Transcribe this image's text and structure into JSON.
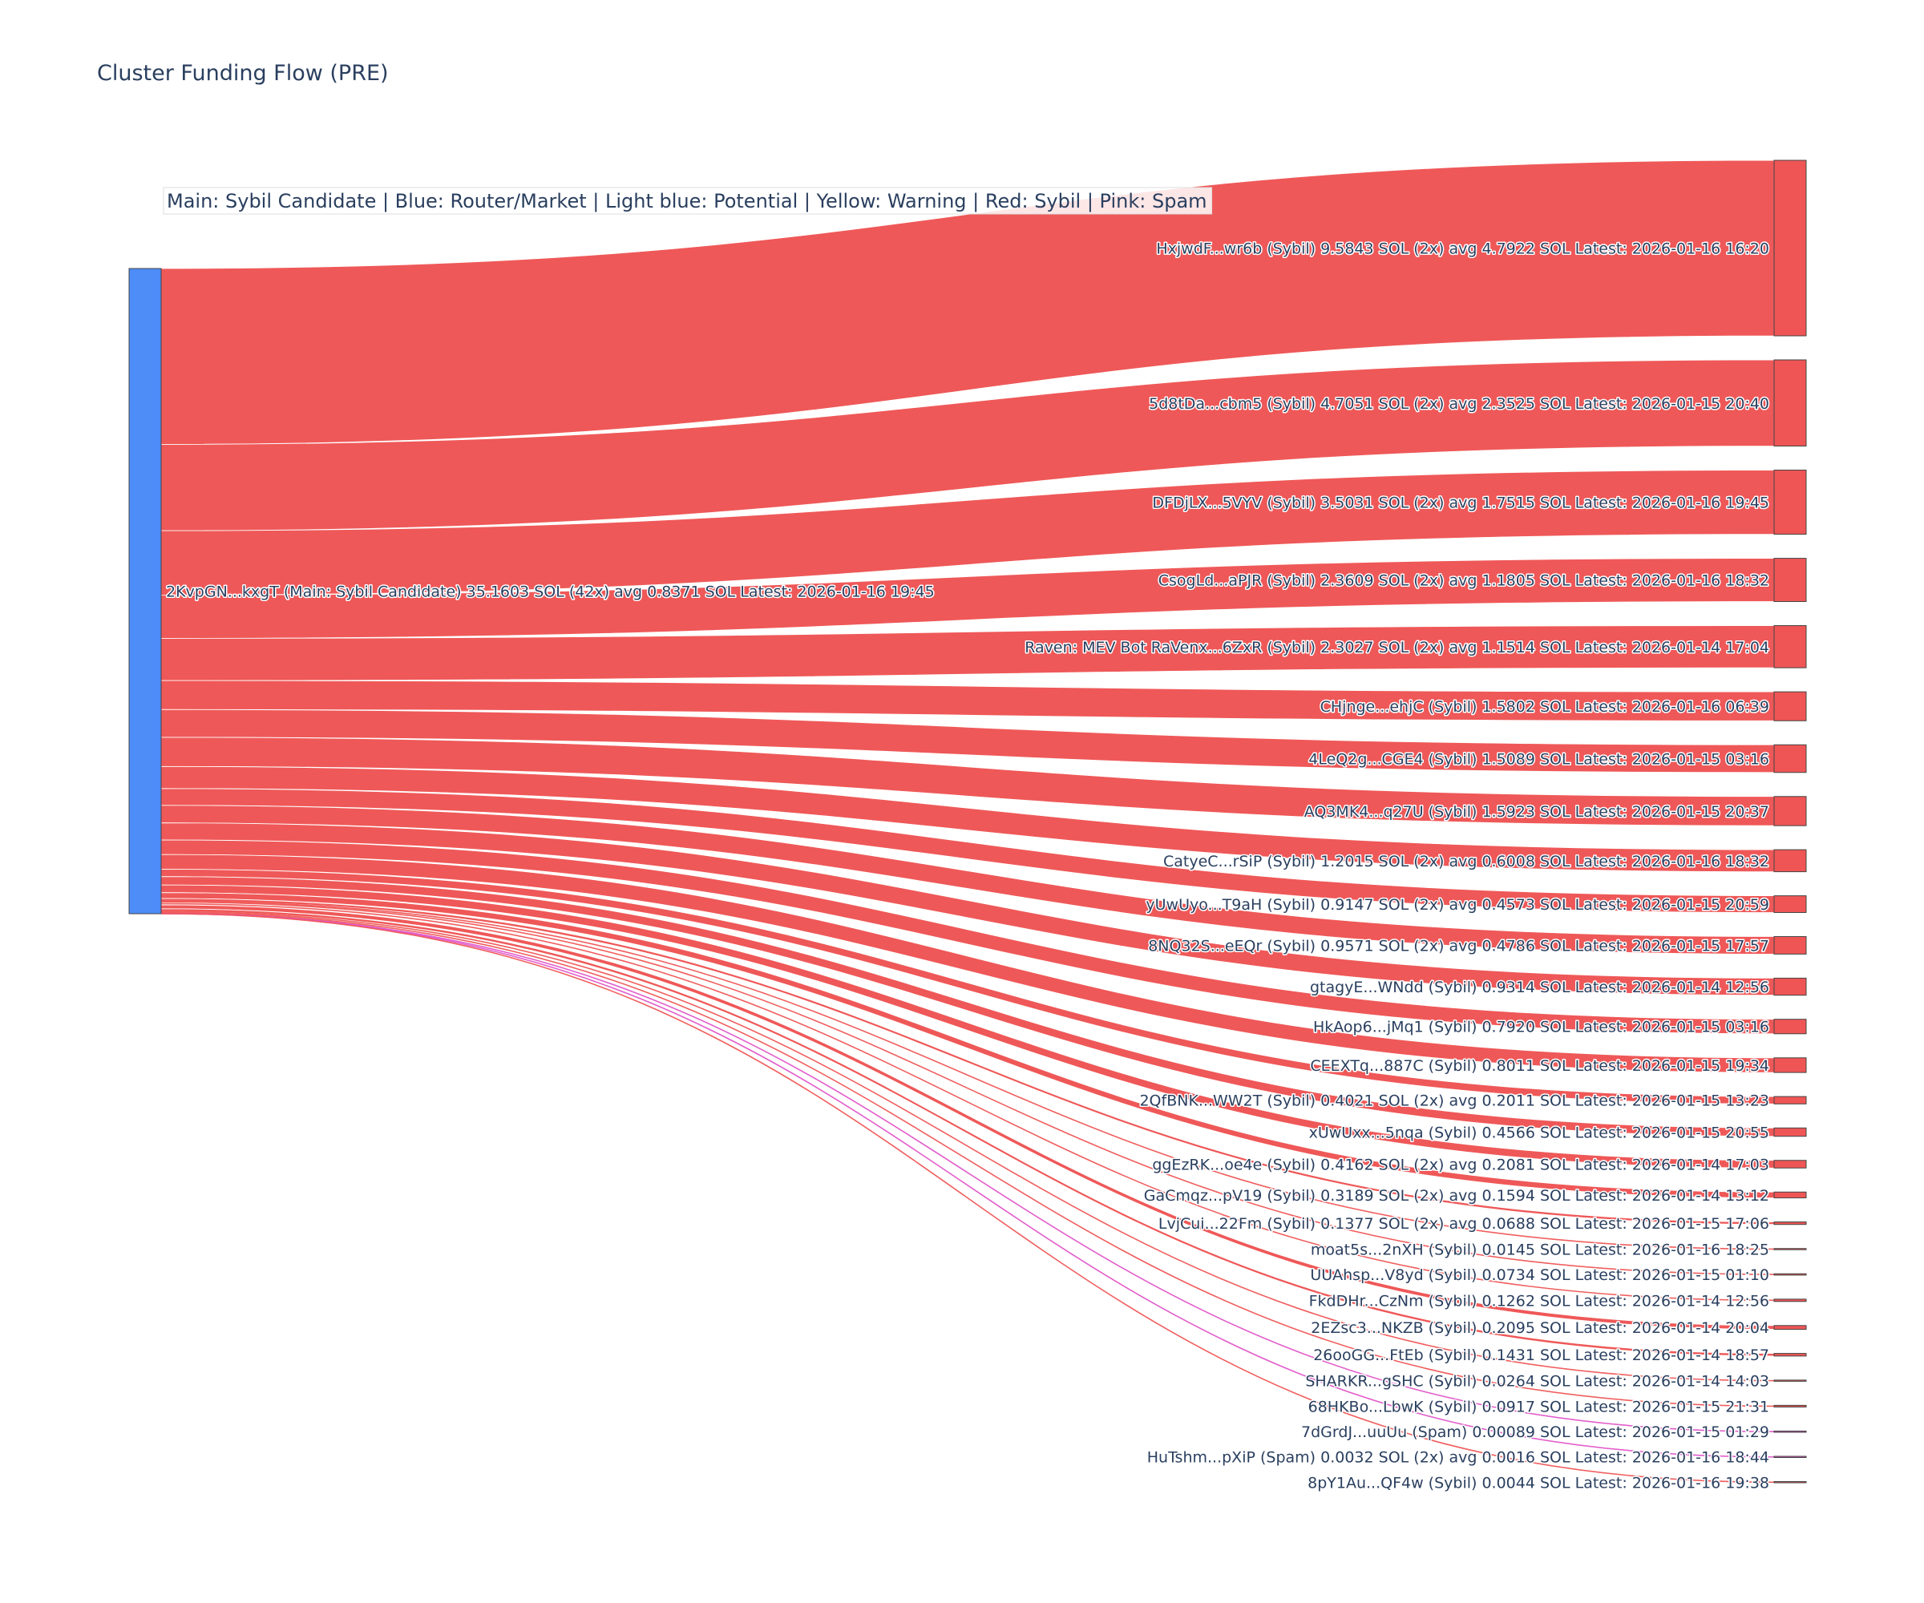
{
  "chart_data": {
    "type": "sankey",
    "title": "Cluster Funding Flow (PRE)",
    "legend_text": "Main: Sybil Candidate  |  Blue: Router/Market | Light blue: Potential | Yellow: Warning | Red: Sybil | Pink: Spam",
    "colors": {
      "source_node": "#4e8cf7",
      "sybil": "#ef5555",
      "spam": "#e055c8",
      "node_outline": "#444444",
      "text": "#2a3f5f"
    },
    "source": {
      "label": "2KvpGN...kxgT (Main: Sybil Candidate) 35.1603 SOL (42x) avg 0.8371 SOL Latest: 2026-01-16 19:45",
      "value": 35.1603,
      "category": "Main: Sybil Candidate"
    },
    "targets": [
      {
        "label": "HxjwdF...wr6b (Sybil) 9.5843 SOL (2x) avg 4.7922 SOL Latest: 2026-01-16 16:20",
        "value": 9.5843,
        "category": "Sybil"
      },
      {
        "label": "5d8tDa...cbm5 (Sybil) 4.7051 SOL (2x) avg 2.3525 SOL Latest: 2026-01-15 20:40",
        "value": 4.7051,
        "category": "Sybil"
      },
      {
        "label": "DFDjLX...5VYV (Sybil) 3.5031 SOL (2x) avg 1.7515 SOL Latest: 2026-01-16 19:45",
        "value": 3.5031,
        "category": "Sybil"
      },
      {
        "label": "CsogLd...aPJR (Sybil) 2.3609 SOL (2x) avg 1.1805 SOL Latest: 2026-01-16 18:32",
        "value": 2.3609,
        "category": "Sybil"
      },
      {
        "label": "Raven: MEV Bot RaVenx...6ZxR (Sybil) 2.3027 SOL (2x) avg 1.1514 SOL Latest: 2026-01-14 17:04",
        "value": 2.3027,
        "category": "Sybil"
      },
      {
        "label": "CHjnge...ehjC (Sybil) 1.5802 SOL Latest: 2026-01-16 06:39",
        "value": 1.5802,
        "category": "Sybil"
      },
      {
        "label": "4LeQ2g...CGE4 (Sybil) 1.5089 SOL Latest: 2026-01-15 03:16",
        "value": 1.5089,
        "category": "Sybil"
      },
      {
        "label": "AQ3MK4...q27U (Sybil) 1.5923 SOL Latest: 2026-01-15 20:37",
        "value": 1.5923,
        "category": "Sybil"
      },
      {
        "label": "CatyeC...rSiP (Sybil) 1.2015 SOL (2x) avg 0.6008 SOL Latest: 2026-01-16 18:32",
        "value": 1.2015,
        "category": "Sybil"
      },
      {
        "label": "yUwUyo...T9aH (Sybil) 0.9147 SOL (2x) avg 0.4573 SOL Latest: 2026-01-15 20:59",
        "value": 0.9147,
        "category": "Sybil"
      },
      {
        "label": "8NQ32S...eEQr (Sybil) 0.9571 SOL (2x) avg 0.4786 SOL Latest: 2026-01-15 17:57",
        "value": 0.9571,
        "category": "Sybil"
      },
      {
        "label": "gtagyE...WNdd (Sybil) 0.9314 SOL Latest: 2026-01-14 12:56",
        "value": 0.9314,
        "category": "Sybil"
      },
      {
        "label": "HkAop6...jMq1 (Sybil) 0.7920 SOL Latest: 2026-01-15 03:16",
        "value": 0.792,
        "category": "Sybil"
      },
      {
        "label": "CEEXTq...887C (Sybil) 0.8011 SOL Latest: 2026-01-15 19:34",
        "value": 0.8011,
        "category": "Sybil"
      },
      {
        "label": "2QfBNK...WW2T (Sybil) 0.4021 SOL (2x) avg 0.2011 SOL Latest: 2026-01-15 13:23",
        "value": 0.4021,
        "category": "Sybil"
      },
      {
        "label": "xUwUxx...5nqa (Sybil) 0.4566 SOL Latest: 2026-01-15 20:55",
        "value": 0.4566,
        "category": "Sybil"
      },
      {
        "label": "ggEzRK...oe4e (Sybil) 0.4162 SOL (2x) avg 0.2081 SOL Latest: 2026-01-14 17:03",
        "value": 0.4162,
        "category": "Sybil"
      },
      {
        "label": "GaCmqz...pV19 (Sybil) 0.3189 SOL (2x) avg 0.1594 SOL Latest: 2026-01-14 13:12",
        "value": 0.3189,
        "category": "Sybil"
      },
      {
        "label": "LvjCui...22Fm (Sybil) 0.1377 SOL (2x) avg 0.0688 SOL Latest: 2026-01-15 17:06",
        "value": 0.1377,
        "category": "Sybil"
      },
      {
        "label": "moat5s...2nXH (Sybil) 0.0145 SOL Latest: 2026-01-16 18:25",
        "value": 0.0145,
        "category": "Sybil"
      },
      {
        "label": "UUAhsp...V8yd (Sybil) 0.0734 SOL Latest: 2026-01-15 01:10",
        "value": 0.0734,
        "category": "Sybil"
      },
      {
        "label": "FkdDHr...CzNm (Sybil) 0.1262 SOL Latest: 2026-01-14 12:56",
        "value": 0.1262,
        "category": "Sybil"
      },
      {
        "label": "2EZsc3...NKZB (Sybil) 0.2095 SOL Latest: 2026-01-14 20:04",
        "value": 0.2095,
        "category": "Sybil"
      },
      {
        "label": "26ooGG...FtEb (Sybil) 0.1431 SOL Latest: 2026-01-14 18:57",
        "value": 0.1431,
        "category": "Sybil"
      },
      {
        "label": "SHARKR...gSHC (Sybil) 0.0264 SOL Latest: 2026-01-14 14:03",
        "value": 0.0264,
        "category": "Sybil"
      },
      {
        "label": "68HKBo...LbwK (Sybil) 0.0917 SOL Latest: 2026-01-15 21:31",
        "value": 0.0917,
        "category": "Sybil"
      },
      {
        "label": "7dGrdJ...uuUu (Spam) 0.00089 SOL Latest: 2026-01-15 01:29",
        "value": 0.00089,
        "category": "Spam"
      },
      {
        "label": "HuTshm...pXiP (Spam) 0.0032 SOL (2x) avg 0.0016 SOL Latest: 2026-01-16 18:44",
        "value": 0.0032,
        "category": "Spam"
      },
      {
        "label": "8pY1Au...QF4w (Sybil) 0.0044 SOL Latest: 2026-01-16 19:38",
        "value": 0.0044,
        "category": "Sybil"
      }
    ]
  }
}
